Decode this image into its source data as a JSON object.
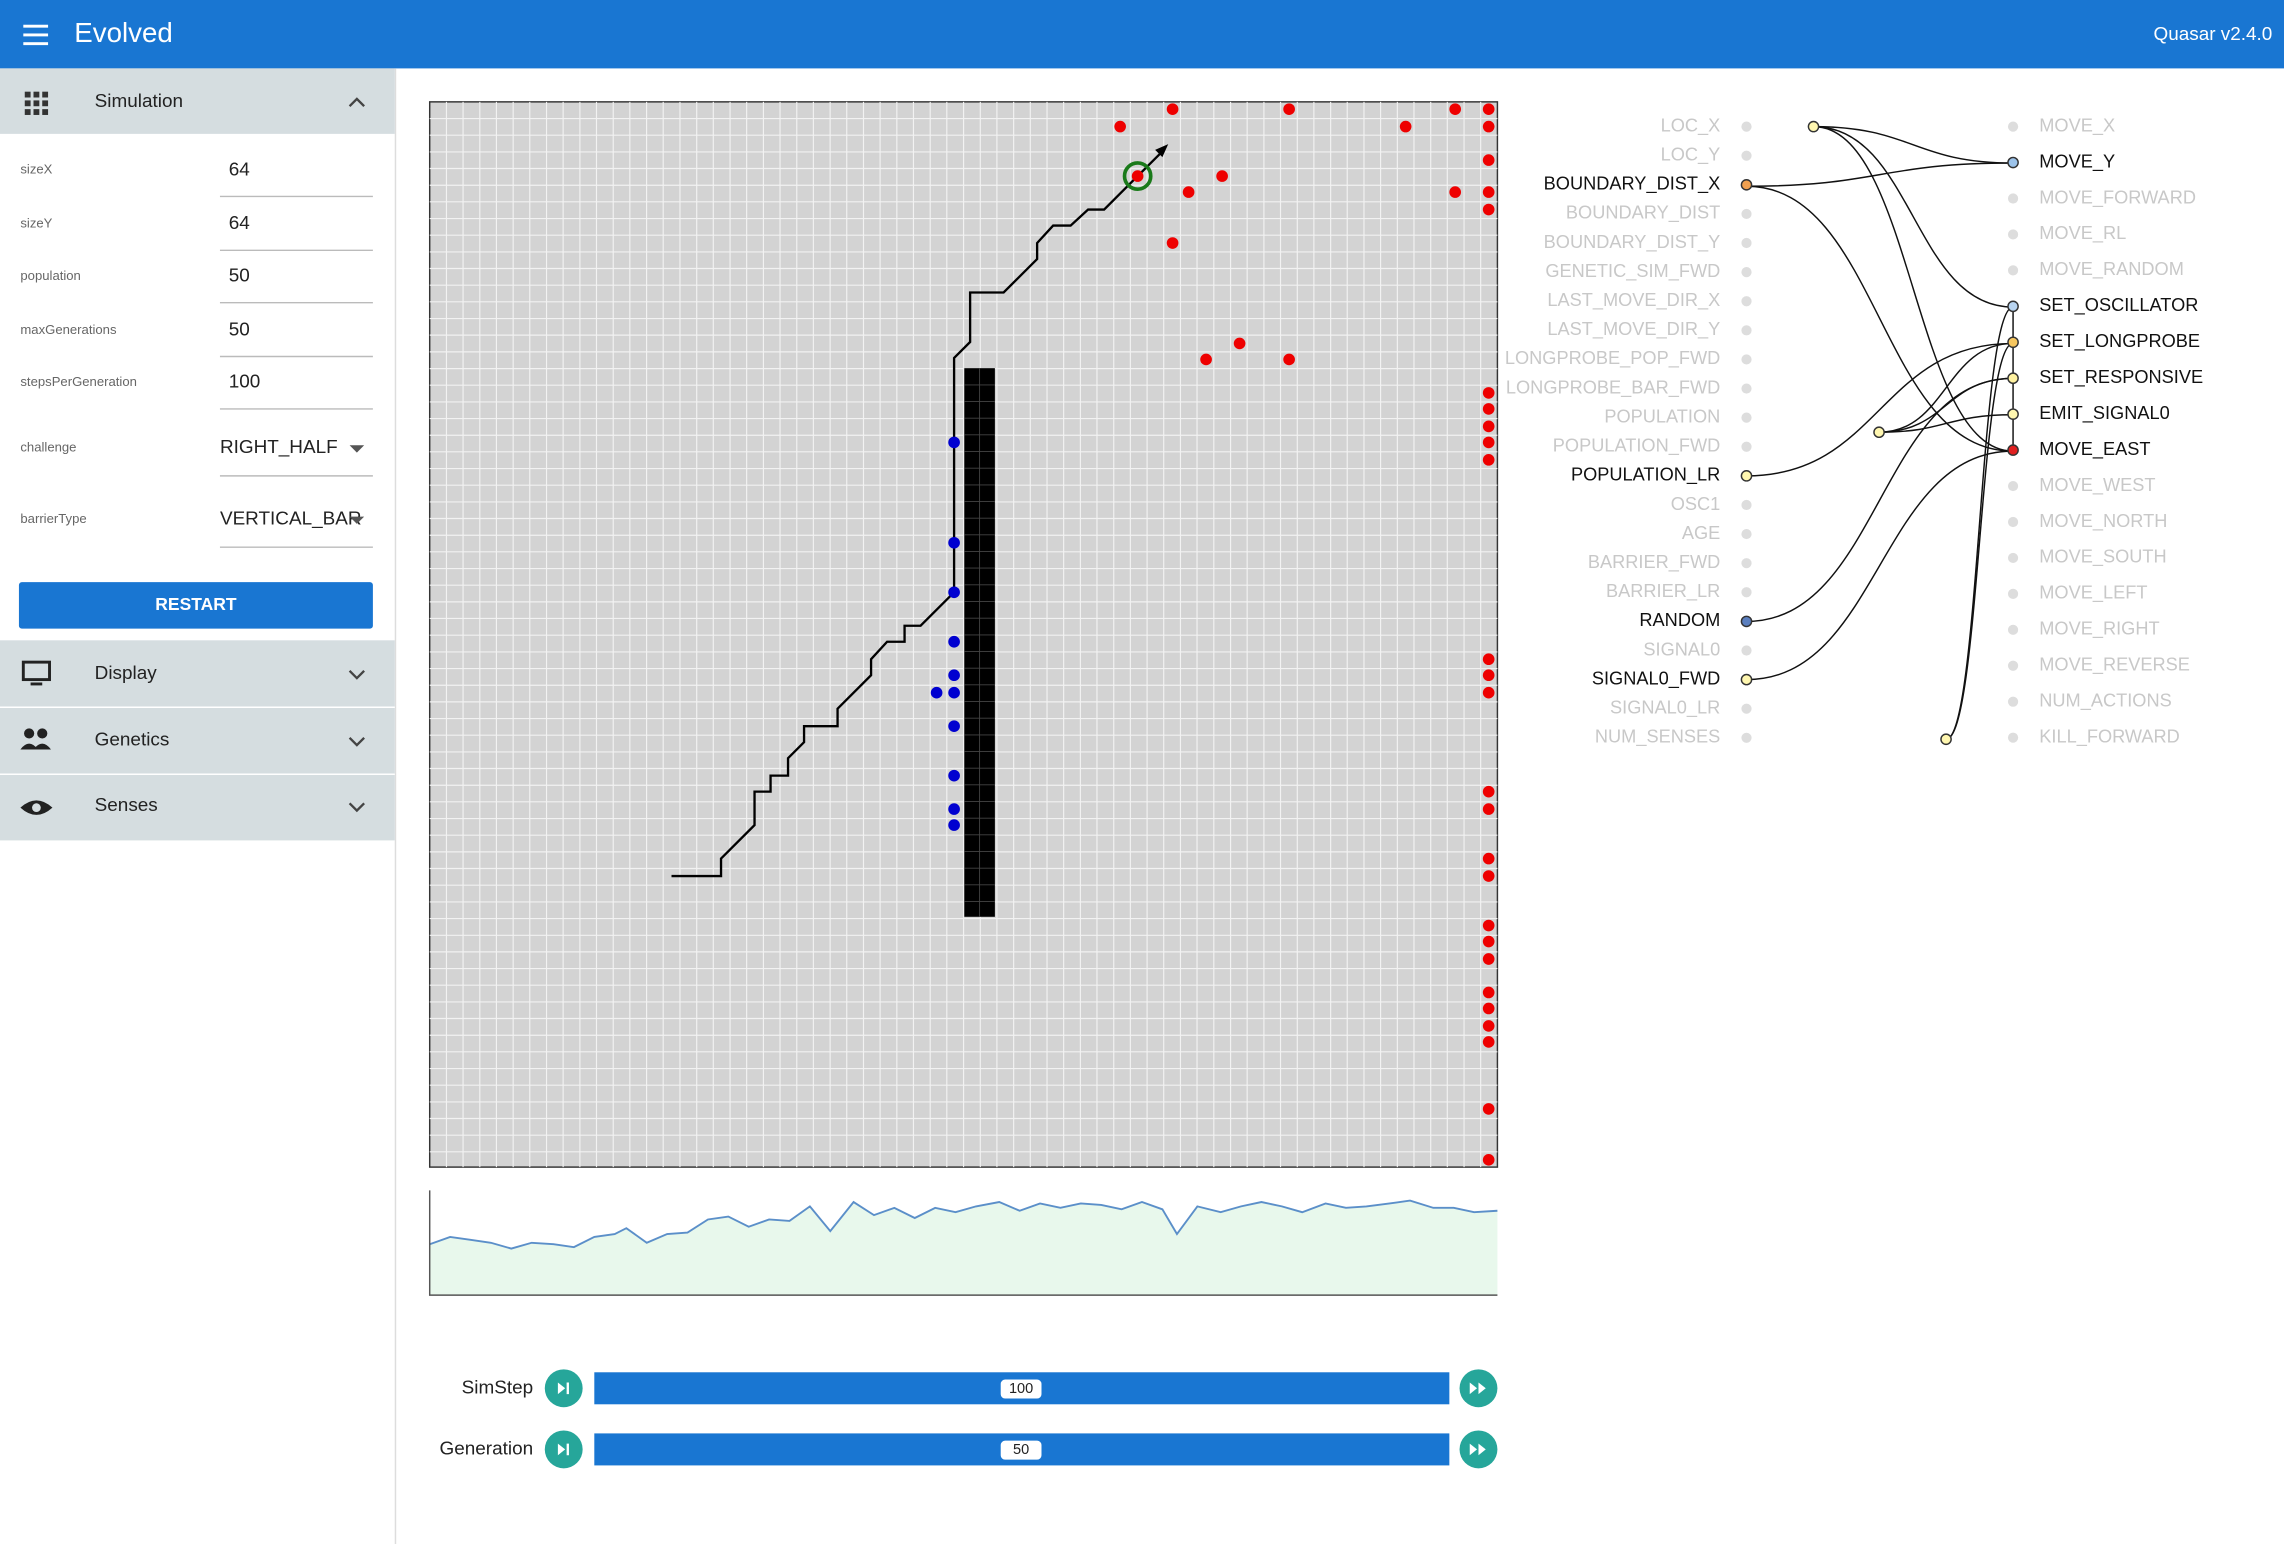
{
  "header": {
    "title": "Evolved",
    "version": "Quasar v2.4.0"
  },
  "sidebar": {
    "sections": [
      "Simulation",
      "Display",
      "Genetics",
      "Senses"
    ],
    "fields": [
      {
        "label": "sizeX",
        "value": 64
      },
      {
        "label": "sizeY",
        "value": 64
      },
      {
        "label": "population",
        "value": 50
      },
      {
        "label": "maxGenerations",
        "value": 50
      },
      {
        "label": "stepsPerGeneration",
        "value": 100
      },
      {
        "label": "challenge",
        "value": "RIGHT_HALF"
      },
      {
        "label": "barrierType",
        "value": "VERTICAL_BAR"
      }
    ],
    "button": "RESTART"
  },
  "network": {
    "inputs": [
      "LOC_X",
      "LOC_Y",
      "BOUNDARY_DIST_X",
      "BOUNDARY_DIST",
      "BOUNDARY_DIST_Y",
      "GENETIC_SIM_FWD",
      "LAST_MOVE_DIR_X",
      "LAST_MOVE_DIR_Y",
      "LONGPROBE_POP_FWD",
      "LONGPROBE_BAR_FWD",
      "POPULATION",
      "POPULATION_FWD",
      "POPULATION_LR",
      "OSC1",
      "AGE",
      "BARRIER_FWD",
      "BARRIER_LR",
      "RANDOM",
      "SIGNAL0",
      "SIGNAL0_FWD",
      "SIGNAL0_LR",
      "NUM_SENSES"
    ],
    "outputs": [
      "MOVE_X",
      "MOVE_Y",
      "MOVE_FORWARD",
      "MOVE_RL",
      "MOVE_RANDOM",
      "SET_OSCILLATOR",
      "SET_LONGPROBE",
      "SET_RESPONSIVE",
      "EMIT_SIGNAL0",
      "MOVE_EAST",
      "MOVE_WEST",
      "MOVE_NORTH",
      "MOVE_SOUTH",
      "MOVE_LEFT",
      "MOVE_RIGHT",
      "MOVE_REVERSE",
      "NUM_ACTIONS",
      "KILL_FORWARD"
    ]
  },
  "controls": [
    {
      "label": "SimStep",
      "value": 100
    },
    {
      "label": "Generation",
      "value": 50
    }
  ]
}
